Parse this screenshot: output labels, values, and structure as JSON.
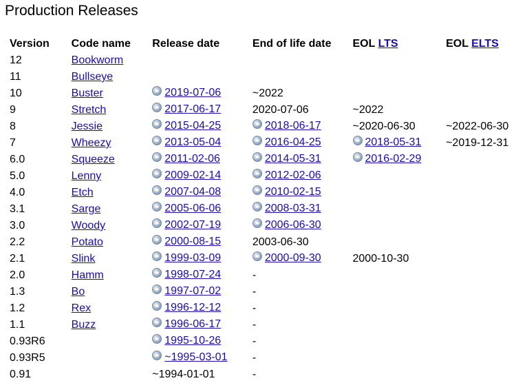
{
  "title": "Production Releases",
  "headers": {
    "version": "Version",
    "codename": "Code name",
    "release": "Release date",
    "eol": "End of life date",
    "lts_prefix": "EOL",
    "lts_link": "LTS",
    "elts_prefix": "EOL",
    "elts_link": "ELTS"
  },
  "rows": [
    {
      "version": "12",
      "codename": "Bookworm",
      "release": "",
      "release_link": false,
      "eol": "",
      "eol_link": false,
      "lts": "",
      "lts_link": false,
      "elts": ""
    },
    {
      "version": "11",
      "codename": "Bullseye",
      "release": "",
      "release_link": false,
      "eol": "",
      "eol_link": false,
      "lts": "",
      "lts_link": false,
      "elts": ""
    },
    {
      "version": "10",
      "codename": "Buster",
      "release": "2019-07-06",
      "release_link": true,
      "eol": "~2022",
      "eol_link": false,
      "lts": "",
      "lts_link": false,
      "elts": ""
    },
    {
      "version": "9",
      "codename": "Stretch",
      "release": "2017-06-17",
      "release_link": true,
      "eol": "2020-07-06",
      "eol_link": false,
      "lts": "~2022",
      "lts_link": false,
      "elts": ""
    },
    {
      "version": "8",
      "codename": "Jessie",
      "release": "2015-04-25",
      "release_link": true,
      "eol": "2018-06-17",
      "eol_link": true,
      "lts": "~2020-06-30",
      "lts_link": false,
      "elts": "~2022-06-30"
    },
    {
      "version": "7",
      "codename": "Wheezy",
      "release": "2013-05-04",
      "release_link": true,
      "eol": "2016-04-25",
      "eol_link": true,
      "lts": "2018-05-31",
      "lts_link": true,
      "elts": "~2019-12-31"
    },
    {
      "version": "6.0",
      "codename": "Squeeze",
      "release": "2011-02-06",
      "release_link": true,
      "eol": "2014-05-31",
      "eol_link": true,
      "lts": "2016-02-29",
      "lts_link": true,
      "elts": ""
    },
    {
      "version": "5.0",
      "codename": "Lenny",
      "release": "2009-02-14",
      "release_link": true,
      "eol": "2012-02-06",
      "eol_link": true,
      "lts": "",
      "lts_link": false,
      "elts": ""
    },
    {
      "version": "4.0",
      "codename": "Etch",
      "release": "2007-04-08",
      "release_link": true,
      "eol": "2010-02-15",
      "eol_link": true,
      "lts": "",
      "lts_link": false,
      "elts": ""
    },
    {
      "version": "3.1",
      "codename": "Sarge",
      "release": "2005-06-06",
      "release_link": true,
      "eol": "2008-03-31",
      "eol_link": true,
      "lts": "",
      "lts_link": false,
      "elts": ""
    },
    {
      "version": "3.0",
      "codename": "Woody",
      "release": "2002-07-19",
      "release_link": true,
      "eol": "2006-06-30",
      "eol_link": true,
      "lts": "",
      "lts_link": false,
      "elts": ""
    },
    {
      "version": "2.2",
      "codename": "Potato",
      "release": "2000-08-15",
      "release_link": true,
      "eol": "2003-06-30",
      "eol_link": false,
      "lts": "",
      "lts_link": false,
      "elts": ""
    },
    {
      "version": "2.1",
      "codename": "Slink",
      "release": "1999-03-09",
      "release_link": true,
      "eol": "2000-09-30",
      "eol_link": true,
      "lts": "2000-10-30",
      "lts_link": false,
      "elts": ""
    },
    {
      "version": "2.0",
      "codename": "Hamm",
      "release": "1998-07-24",
      "release_link": true,
      "eol": "-",
      "eol_link": false,
      "lts": "",
      "lts_link": false,
      "elts": ""
    },
    {
      "version": "1.3",
      "codename": "Bo",
      "release": "1997-07-02",
      "release_link": true,
      "eol": "-",
      "eol_link": false,
      "lts": "",
      "lts_link": false,
      "elts": ""
    },
    {
      "version": "1.2",
      "codename": "Rex",
      "release": "1996-12-12",
      "release_link": true,
      "eol": "-",
      "eol_link": false,
      "lts": "",
      "lts_link": false,
      "elts": ""
    },
    {
      "version": "1.1",
      "codename": "Buzz",
      "release": "1996-06-17",
      "release_link": true,
      "eol": "-",
      "eol_link": false,
      "lts": "",
      "lts_link": false,
      "elts": ""
    },
    {
      "version": "0.93R6",
      "codename": "",
      "release": "1995-10-26",
      "release_link": true,
      "eol": "-",
      "eol_link": false,
      "lts": "",
      "lts_link": false,
      "elts": ""
    },
    {
      "version": "0.93R5",
      "codename": "",
      "release": "~1995-03-01",
      "release_link": true,
      "eol": "-",
      "eol_link": false,
      "lts": "",
      "lts_link": false,
      "elts": ""
    },
    {
      "version": "0.91",
      "codename": "",
      "release": "~1994-01-01",
      "release_link": false,
      "eol": "-",
      "eol_link": false,
      "lts": "",
      "lts_link": false,
      "elts": ""
    }
  ]
}
